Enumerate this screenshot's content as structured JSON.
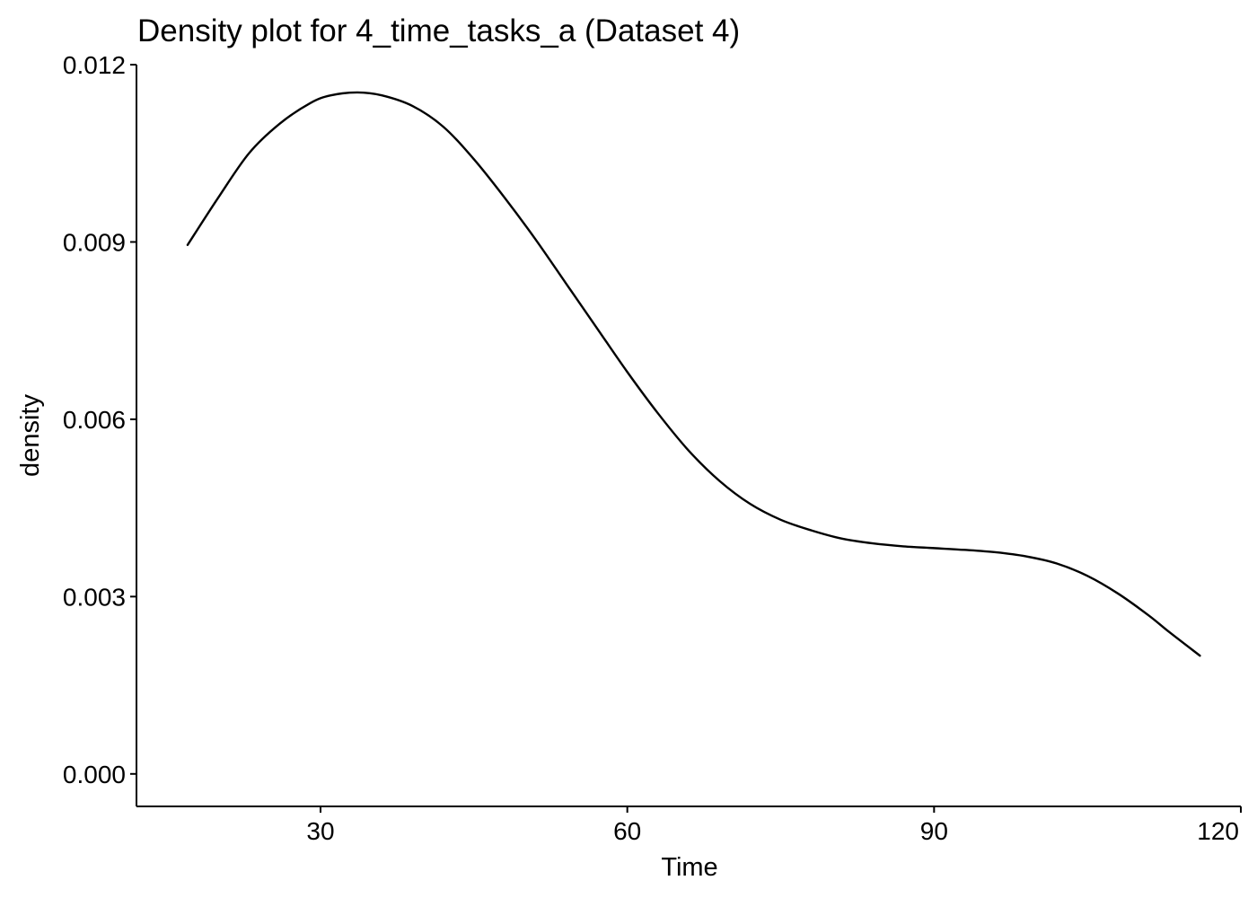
{
  "chart_data": {
    "type": "line",
    "title": "Density plot for 4_time_tasks_a (Dataset 4)",
    "xlabel": "Time",
    "ylabel": "density",
    "xlim": [
      12,
      120
    ],
    "ylim": [
      -0.00055,
      0.012
    ],
    "grid": false,
    "legend": "none",
    "x_ticks": [
      30,
      60,
      90,
      120
    ],
    "x_tick_labels": [
      "30",
      "60",
      "90",
      "120"
    ],
    "y_ticks": [
      0.0,
      0.003,
      0.006,
      0.009,
      0.012
    ],
    "y_tick_labels": [
      "0.000",
      "0.003",
      "0.006",
      "0.009",
      "0.012"
    ],
    "series": [
      {
        "color": "#000000",
        "x": [
          17,
          20,
          23,
          26,
          29,
          31,
          33.6,
          36,
          39,
          42,
          45,
          48,
          51,
          54,
          57,
          60,
          63,
          66,
          69,
          72,
          75,
          78,
          81,
          84,
          87,
          90,
          93,
          96,
          99,
          102,
          105,
          108,
          111,
          113,
          116
        ],
        "y": [
          0.00895,
          0.00975,
          0.0105,
          0.011,
          0.01135,
          0.01148,
          0.01153,
          0.01148,
          0.0113,
          0.01095,
          0.0104,
          0.00975,
          0.00905,
          0.0083,
          0.00755,
          0.0068,
          0.0061,
          0.00547,
          0.00496,
          0.00457,
          0.0043,
          0.00412,
          0.00398,
          0.0039,
          0.00385,
          0.00382,
          0.00379,
          0.00375,
          0.00368,
          0.00356,
          0.00335,
          0.00305,
          0.00268,
          0.0024,
          0.002
        ]
      }
    ]
  }
}
